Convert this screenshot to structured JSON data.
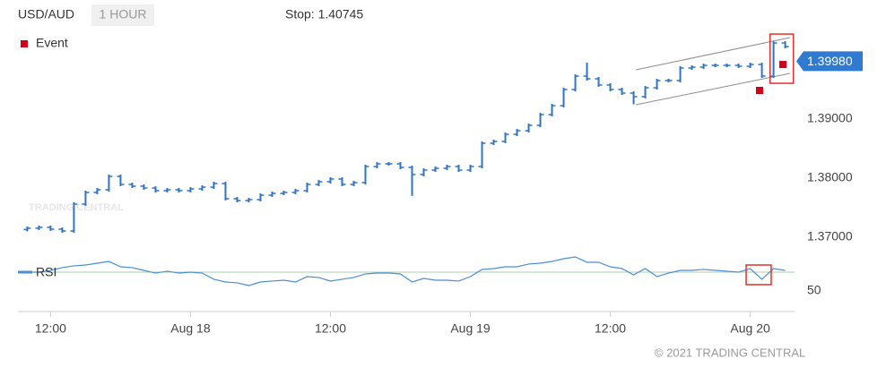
{
  "chart_data": [
    {
      "type": "ohlc",
      "symbol": "USD/AUD",
      "interval": "1 HOUR",
      "stop": "Stop: 1.40745",
      "watermark": "TRADING CENTRAL",
      "copyright": "© 2021 TRADING CENTRAL",
      "color": "#2f74c6",
      "x": [
        -2,
        -1,
        0,
        1,
        2,
        3,
        4,
        5,
        6,
        7,
        8,
        9,
        10,
        11,
        12,
        13,
        14,
        15,
        16,
        17,
        18,
        19,
        20,
        21,
        22,
        23,
        24,
        25,
        26,
        27,
        28,
        29,
        30,
        31,
        32,
        33,
        34,
        35,
        36,
        37,
        38,
        39,
        40,
        41,
        42,
        43,
        44,
        45,
        46,
        47,
        48,
        49,
        50,
        51,
        52,
        53,
        54,
        55,
        56,
        57,
        58,
        59,
        60,
        61,
        62,
        63
      ],
      "open": [
        1.3713,
        1.37152,
        1.37167,
        1.37136,
        1.37106,
        1.37561,
        1.37758,
        1.37803,
        1.3803,
        1.37894,
        1.37864,
        1.37833,
        1.37788,
        1.37803,
        1.37788,
        1.37818,
        1.37848,
        1.37909,
        1.37652,
        1.37621,
        1.37636,
        1.37712,
        1.37742,
        1.37758,
        1.37788,
        1.37894,
        1.37939,
        1.37985,
        1.37894,
        1.37924,
        1.38197,
        1.38242,
        1.38242,
        1.38182,
        1.38061,
        1.38136,
        1.38167,
        1.38197,
        1.38136,
        1.38197,
        1.38591,
        1.38621,
        1.38742,
        1.38803,
        1.38894,
        1.39076,
        1.39227,
        1.395,
        1.39727,
        1.39682,
        1.39576,
        1.395,
        1.39439,
        1.39379,
        1.3953,
        1.39652,
        1.39652,
        1.39864,
        1.39879,
        1.39909,
        1.39909,
        1.39909,
        1.39894,
        1.39924,
        1.39727,
        1.40288
      ],
      "high": [
        1.37182,
        1.37197,
        1.37197,
        1.37166,
        1.37591,
        1.37788,
        1.37833,
        1.3806,
        1.3806,
        1.37924,
        1.37894,
        1.37863,
        1.37833,
        1.37833,
        1.37848,
        1.37878,
        1.37939,
        1.37939,
        1.37682,
        1.37666,
        1.37742,
        1.37772,
        1.37788,
        1.37818,
        1.37924,
        1.37969,
        1.38015,
        1.38015,
        1.37954,
        1.38227,
        1.38272,
        1.38272,
        1.38272,
        1.38212,
        1.38166,
        1.38197,
        1.38227,
        1.38227,
        1.38227,
        1.38621,
        1.38651,
        1.38772,
        1.38833,
        1.38924,
        1.39106,
        1.39257,
        1.3953,
        1.39757,
        1.39955,
        1.39712,
        1.39606,
        1.3953,
        1.39469,
        1.3956,
        1.39682,
        1.39682,
        1.39894,
        1.39909,
        1.39939,
        1.39939,
        1.39939,
        1.39939,
        1.39954,
        1.39954,
        1.40318,
        1.40318
      ],
      "low": [
        1.371,
        1.37122,
        1.37106,
        1.37076,
        1.37076,
        1.37531,
        1.37728,
        1.37773,
        1.37864,
        1.37834,
        1.37803,
        1.37758,
        1.37758,
        1.37758,
        1.37758,
        1.37788,
        1.37818,
        1.37622,
        1.37591,
        1.37591,
        1.37606,
        1.37682,
        1.37712,
        1.37728,
        1.37758,
        1.37864,
        1.37909,
        1.37864,
        1.37864,
        1.37894,
        1.38167,
        1.38212,
        1.38152,
        1.377,
        1.38031,
        1.38106,
        1.38137,
        1.38106,
        1.38106,
        1.38167,
        1.38561,
        1.38591,
        1.38712,
        1.38773,
        1.38864,
        1.39046,
        1.39197,
        1.3947,
        1.39652,
        1.39546,
        1.3947,
        1.39409,
        1.3925,
        1.39349,
        1.395,
        1.39622,
        1.39622,
        1.39834,
        1.39849,
        1.39879,
        1.39879,
        1.39864,
        1.39864,
        1.39697,
        1.39697,
        1.40197
      ],
      "close": [
        1.37152,
        1.37167,
        1.37136,
        1.37106,
        1.37561,
        1.37758,
        1.37803,
        1.3803,
        1.37894,
        1.37864,
        1.37833,
        1.37788,
        1.37803,
        1.37788,
        1.37818,
        1.37848,
        1.37909,
        1.37652,
        1.37621,
        1.37636,
        1.37712,
        1.37742,
        1.37758,
        1.37788,
        1.37894,
        1.37939,
        1.37985,
        1.37894,
        1.37924,
        1.38197,
        1.38242,
        1.38242,
        1.38182,
        1.38061,
        1.38136,
        1.38167,
        1.38197,
        1.38136,
        1.38197,
        1.38591,
        1.38621,
        1.38742,
        1.38803,
        1.38894,
        1.39076,
        1.39227,
        1.395,
        1.39727,
        1.39682,
        1.39576,
        1.395,
        1.39439,
        1.39379,
        1.3953,
        1.39652,
        1.39652,
        1.39864,
        1.39879,
        1.39909,
        1.39909,
        1.39909,
        1.39894,
        1.39924,
        1.39727,
        1.40288,
        1.40227
      ],
      "xlim": [
        -2.8,
        63.8
      ],
      "xticks": [
        {
          "value": 0,
          "label": "12:00"
        },
        {
          "value": 12,
          "label": "Aug 18"
        },
        {
          "value": 24,
          "label": "12:00"
        },
        {
          "value": 36,
          "label": "Aug 19"
        },
        {
          "value": 48,
          "label": "12:00"
        },
        {
          "value": 60,
          "label": "Aug 20"
        }
      ],
      "ylim": [
        1.36727,
        1.40561
      ],
      "yticks": [
        {
          "value": 1.37,
          "label": "1.37000"
        },
        {
          "value": 1.38,
          "label": "1.38000"
        },
        {
          "value": 1.39,
          "label": "1.39000"
        }
      ],
      "last_price": {
        "value": 1.3998,
        "label": "1.39980"
      },
      "legend": [
        {
          "name": "Event",
          "color": "#d0021b"
        }
      ],
      "events": [
        {
          "x": 60.8,
          "y": 1.39485
        },
        {
          "x": 62.8,
          "y": 1.39924
        }
      ],
      "channel": [
        {
          "x": [
            50.2,
            63.4
          ],
          "y": [
            1.39833,
            1.40379
          ]
        },
        {
          "x": [
            50.2,
            63.4
          ],
          "y": [
            1.39242,
            1.39773
          ]
        }
      ],
      "highlight_boxes": [
        {
          "x": [
            61.7,
            63.7
          ],
          "y": [
            1.39606,
            1.40439
          ]
        }
      ]
    },
    {
      "type": "line",
      "series": [
        {
          "name": "RSI",
          "color": "#4a8fd6",
          "values": [
            70,
            70,
            71.9,
            74.8,
            76.7,
            77.6,
            79.5,
            81.4,
            75.7,
            74.8,
            71.9,
            69.0,
            71.0,
            69.0,
            70,
            69.0,
            62.4,
            59.5,
            58.6,
            55.7,
            59.5,
            60.5,
            61.4,
            59.5,
            65.2,
            64.3,
            60.5,
            62.4,
            64.3,
            68.1,
            69.0,
            69.0,
            68.1,
            59.5,
            63.3,
            61.4,
            61.4,
            60.5,
            65.2,
            72.9,
            73.8,
            75.7,
            75.7,
            78.6,
            79.5,
            81.4,
            84.3,
            86.2,
            80.5,
            80.5,
            75.7,
            73.8,
            67.1,
            73.8,
            65.2,
            69.0,
            71.9,
            71.9,
            72.9,
            71.9,
            71.0,
            70,
            73.8,
            62.4,
            73.8,
            71.9
          ]
        }
      ],
      "ylim": [
        29,
        90
      ],
      "yticks": [
        50
      ],
      "reference": 70,
      "reference_color": "#a9cfa9",
      "highlight_boxes": [
        {
          "x": [
            59.65,
            61.8
          ],
          "y": [
            56.7,
            77.6
          ]
        }
      ]
    }
  ]
}
